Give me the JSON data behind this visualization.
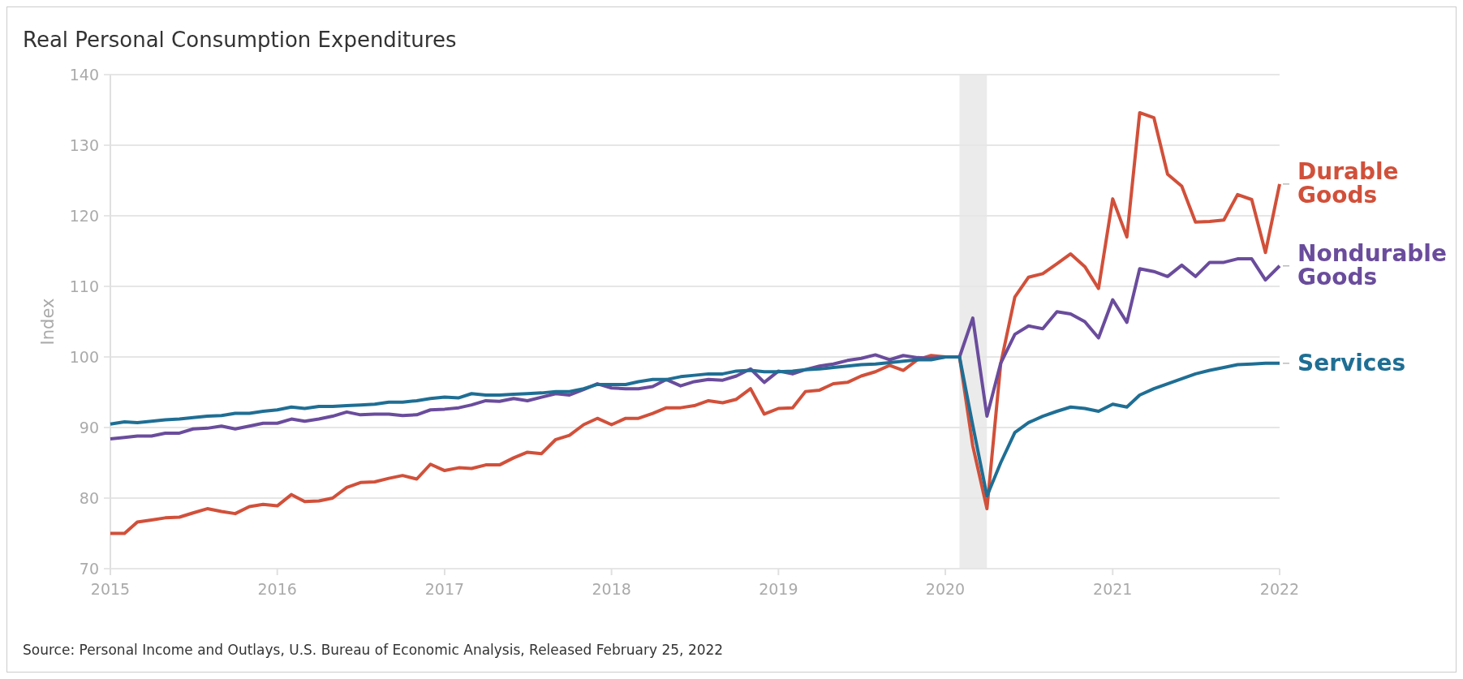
{
  "chart_data": {
    "type": "line",
    "title": "Real Personal Consumption Expenditures",
    "ylabel": "Index",
    "annotations": [
      "Source: Personal Income and Outlays, U.S. Bureau of Economic Analysis, Released February 25, 2022"
    ],
    "x": [
      "2015-01",
      "2015-02",
      "2015-03",
      "2015-04",
      "2015-05",
      "2015-06",
      "2015-07",
      "2015-08",
      "2015-09",
      "2015-10",
      "2015-11",
      "2015-12",
      "2016-01",
      "2016-02",
      "2016-03",
      "2016-04",
      "2016-05",
      "2016-06",
      "2016-07",
      "2016-08",
      "2016-09",
      "2016-10",
      "2016-11",
      "2016-12",
      "2017-01",
      "2017-02",
      "2017-03",
      "2017-04",
      "2017-05",
      "2017-06",
      "2017-07",
      "2017-08",
      "2017-09",
      "2017-10",
      "2017-11",
      "2017-12",
      "2018-01",
      "2018-02",
      "2018-03",
      "2018-04",
      "2018-05",
      "2018-06",
      "2018-07",
      "2018-08",
      "2018-09",
      "2018-10",
      "2018-11",
      "2018-12",
      "2019-01",
      "2019-02",
      "2019-03",
      "2019-04",
      "2019-05",
      "2019-06",
      "2019-07",
      "2019-08",
      "2019-09",
      "2019-10",
      "2019-11",
      "2019-12",
      "2020-01",
      "2020-02",
      "2020-03",
      "2020-04",
      "2020-05",
      "2020-06",
      "2020-07",
      "2020-08",
      "2020-09",
      "2020-10",
      "2020-11",
      "2020-12",
      "2021-01",
      "2021-02",
      "2021-03",
      "2021-04",
      "2021-05",
      "2021-06",
      "2021-07",
      "2021-08",
      "2021-09",
      "2021-10",
      "2021-11",
      "2021-12",
      "2022-01"
    ],
    "series": [
      {
        "name": "Durable Goods",
        "color": "#d1503a",
        "values": [
          75,
          75,
          76.6,
          76.9,
          77.2,
          77.3,
          77.9,
          78.5,
          78.1,
          77.8,
          78.8,
          79.1,
          78.9,
          80.5,
          79.5,
          79.6,
          80,
          81.5,
          82.2,
          82.3,
          82.8,
          83.2,
          82.7,
          84.8,
          83.9,
          84.3,
          84.2,
          84.7,
          84.7,
          85.7,
          86.5,
          86.3,
          88.3,
          88.9,
          90.4,
          91.3,
          90.4,
          91.3,
          91.3,
          92,
          92.8,
          92.8,
          93.1,
          93.8,
          93.5,
          94,
          95.5,
          91.9,
          92.7,
          92.8,
          95.1,
          95.3,
          96.2,
          96.4,
          97.3,
          97.9,
          98.8,
          98.1,
          99.6,
          100.2,
          100,
          100,
          87.4,
          78.5,
          99,
          108.5,
          111.3,
          111.8,
          113.2,
          114.6,
          112.8,
          109.7,
          122.4,
          117,
          134.6,
          133.9,
          125.9,
          124.2,
          119.1,
          119.2,
          119.4,
          123,
          122.3,
          114.8,
          124.5
        ]
      },
      {
        "name": "Nondurable Goods",
        "color": "#6a4c9c",
        "values": [
          88.4,
          88.6,
          88.8,
          88.8,
          89.2,
          89.2,
          89.8,
          89.9,
          90.2,
          89.8,
          90.2,
          90.6,
          90.6,
          91.2,
          90.9,
          91.2,
          91.6,
          92.2,
          91.8,
          91.9,
          91.9,
          91.7,
          91.8,
          92.5,
          92.6,
          92.8,
          93.2,
          93.8,
          93.7,
          94.1,
          93.8,
          94.3,
          94.8,
          94.6,
          95.4,
          96.2,
          95.6,
          95.5,
          95.5,
          95.8,
          96.8,
          95.9,
          96.5,
          96.8,
          96.7,
          97.3,
          98.3,
          96.4,
          98,
          97.6,
          98.2,
          98.7,
          99,
          99.5,
          99.8,
          100.3,
          99.6,
          100.2,
          99.9,
          99.8,
          100,
          100,
          105.5,
          91.6,
          99.1,
          103.2,
          104.4,
          104,
          106.4,
          106.1,
          105,
          102.7,
          108.1,
          104.9,
          112.5,
          112.1,
          111.4,
          113,
          111.4,
          113.4,
          113.4,
          113.9,
          113.9,
          110.9,
          112.9
        ]
      },
      {
        "name": "Services",
        "color": "#1f6e94",
        "values": [
          90.5,
          90.8,
          90.7,
          90.9,
          91.1,
          91.2,
          91.4,
          91.6,
          91.7,
          92,
          92,
          92.3,
          92.5,
          92.9,
          92.7,
          93,
          93,
          93.1,
          93.2,
          93.3,
          93.6,
          93.6,
          93.8,
          94.1,
          94.3,
          94.2,
          94.8,
          94.6,
          94.6,
          94.7,
          94.8,
          94.9,
          95.1,
          95.1,
          95.5,
          96.1,
          96.1,
          96.1,
          96.5,
          96.8,
          96.8,
          97.2,
          97.4,
          97.6,
          97.6,
          98,
          98.1,
          97.9,
          97.9,
          98,
          98.2,
          98.3,
          98.5,
          98.7,
          98.9,
          99,
          99.2,
          99.4,
          99.6,
          99.6,
          100,
          100,
          90.3,
          80.3,
          85,
          89.3,
          90.7,
          91.6,
          92.3,
          92.9,
          92.7,
          92.3,
          93.3,
          92.9,
          94.6,
          95.5,
          96.2,
          96.9,
          97.6,
          98.1,
          98.5,
          98.9,
          99,
          99.1,
          99.1
        ]
      }
    ],
    "xlim": [
      "2015-01",
      "2022-01"
    ],
    "xticks": [
      "2015",
      "2016",
      "2017",
      "2018",
      "2019",
      "2020",
      "2021",
      "2022"
    ],
    "ylim": [
      70,
      140
    ],
    "yticks": [
      70,
      80,
      90,
      100,
      110,
      120,
      130,
      140
    ],
    "grid": "y",
    "legend": false,
    "bands": [
      {
        "axis": "x",
        "from": "2020-02",
        "to": "2020-04",
        "color": "#ebebeb"
      }
    ]
  }
}
